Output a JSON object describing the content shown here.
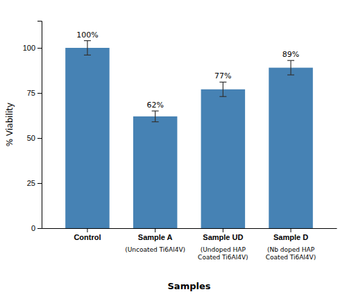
{
  "chart_data": {
    "type": "bar",
    "categories": [
      "Control",
      "Sample A",
      "Sample UD",
      "Sample D"
    ],
    "category_sublabels": [
      null,
      "(Uncoated Ti6Al4V)",
      "(Undoped HAP\nCoated Ti6Al4V)",
      "(Nb doped HAP\nCoated Ti6Al4V)"
    ],
    "values": [
      100,
      62,
      77,
      89
    ],
    "errors": [
      4,
      3,
      4,
      4
    ],
    "data_labels": true,
    "value_labels": [
      "100%",
      "62%",
      "77%",
      "89%"
    ],
    "xlabel": "Samples",
    "ylabel": "% Viability",
    "ylim": [
      0,
      115
    ],
    "yticks": [
      0,
      25,
      50,
      75,
      100
    ],
    "grid": false
  }
}
